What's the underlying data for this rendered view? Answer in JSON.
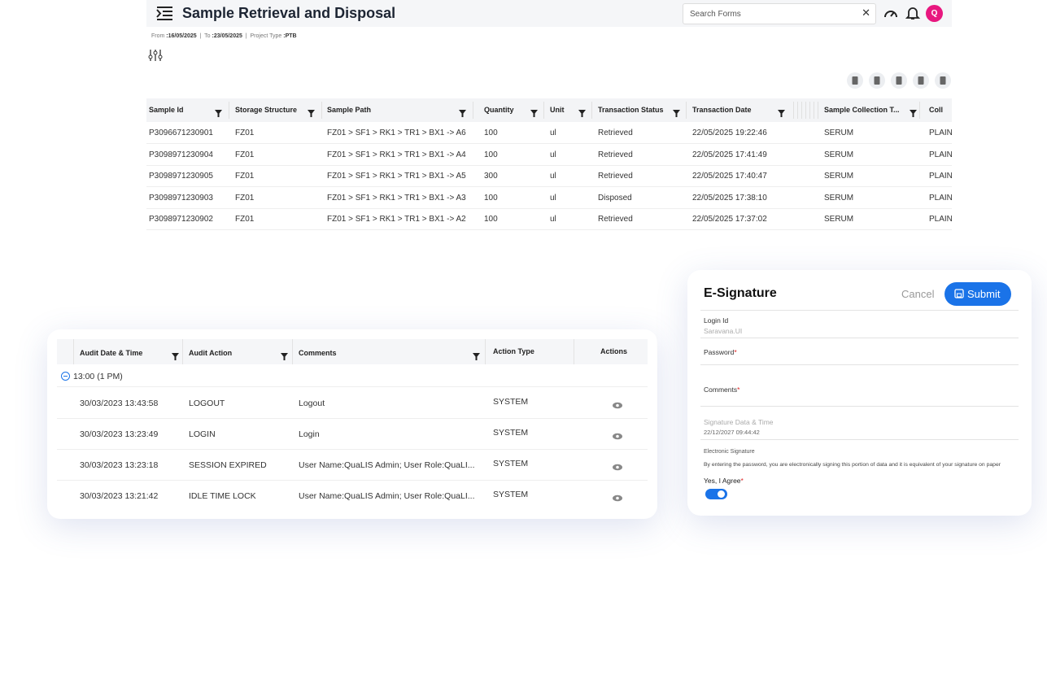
{
  "header": {
    "title": "Sample Retrieval and Disposal",
    "search_placeholder": "Search Forms",
    "avatar": "Q"
  },
  "filters": {
    "from_label": "From",
    "from_value": ":16/05/2025",
    "to_label": "To",
    "to_value": ":23/05/2025",
    "project_type_label": "Project Type",
    "project_type_value": ":PTB"
  },
  "table": {
    "columns": [
      "Sample Id",
      "Storage Structure",
      "Sample Path",
      "Quantity",
      "Unit",
      "Transaction Status",
      "Transaction Date",
      "Sample Collection T...",
      "Coll"
    ],
    "rows": [
      [
        "P3096671230901",
        "FZ01",
        "FZ01 > SF1 > RK1 > TR1 > BX1 -> A6",
        "100",
        "ul",
        "Retrieved",
        "22/05/2025 19:22:46",
        "SERUM",
        "PLAIN"
      ],
      [
        "P3098971230904",
        "FZ01",
        "FZ01 > SF1 > RK1 > TR1 > BX1 -> A4",
        "100",
        "ul",
        "Retrieved",
        "22/05/2025 17:41:49",
        "SERUM",
        "PLAIN"
      ],
      [
        "P3098971230905",
        "FZ01",
        "FZ01 > SF1 > RK1 > TR1 > BX1 -> A5",
        "300",
        "ul",
        "Retrieved",
        "22/05/2025 17:40:47",
        "SERUM",
        "PLAIN"
      ],
      [
        "P3098971230903",
        "FZ01",
        "FZ01 > SF1 > RK1 > TR1 > BX1 -> A3",
        "100",
        "ul",
        "Disposed",
        "22/05/2025 17:38:10",
        "SERUM",
        "PLAIN"
      ],
      [
        "P3098971230902",
        "FZ01",
        "FZ01 > SF1 > RK1 > TR1 > BX1 -> A2",
        "100",
        "ul",
        "Retrieved",
        "22/05/2025 17:37:02",
        "SERUM",
        "PLAIN"
      ]
    ]
  },
  "audit": {
    "columns": [
      "Audit Date & Time",
      "Audit Action",
      "Comments",
      "Action Type",
      "Actions"
    ],
    "group": "13:00 (1 PM)",
    "rows": [
      [
        "30/03/2023 13:43:58",
        "LOGOUT",
        "Logout",
        "SYSTEM"
      ],
      [
        "30/03/2023 13:23:49",
        "LOGIN",
        "Login",
        "SYSTEM"
      ],
      [
        "30/03/2023 13:23:18",
        "SESSION EXPIRED",
        "User Name:QuaLIS Admin; User Role:QuaLI...",
        "SYSTEM"
      ],
      [
        "30/03/2023 13:21:42",
        "IDLE TIME LOCK",
        "User Name:QuaLIS Admin; User Role:QuaLI...",
        "SYSTEM"
      ]
    ]
  },
  "esignature": {
    "title": "E-Signature",
    "cancel": "Cancel",
    "submit": "Submit",
    "login_label": "Login Id",
    "login_value": "Saravana.UI",
    "password_label": "Password",
    "required": "*",
    "comments_label": "Comments",
    "date_label": "Signature Data & Time",
    "date_value": "22/12/2027 09:44:42",
    "esig_label": "Electronic Signature",
    "esig_text": "By entering the password, you are electronically signing this portion of data and it is equivalent of your signature on paper",
    "agree_label": "Yes, I Agree"
  }
}
